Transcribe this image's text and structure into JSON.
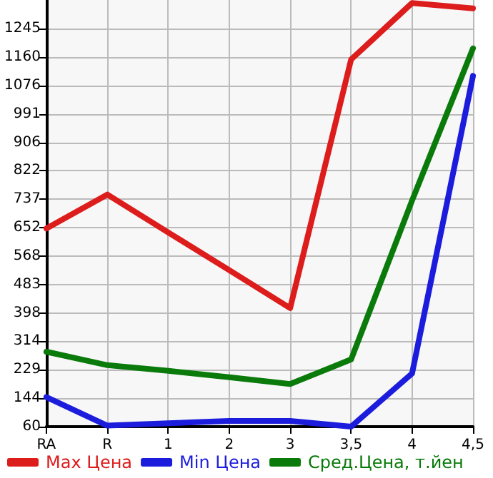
{
  "chart_data": {
    "type": "line",
    "categories": [
      "RA",
      "R",
      "1",
      "2",
      "3",
      "3,5",
      "4",
      "4,5"
    ],
    "series": [
      {
        "name": "Max Цена",
        "color": "#dd1c1c",
        "values": [
          650,
          751,
          638,
          526,
          413,
          1153,
          1321,
          1305
        ]
      },
      {
        "name": "Min Цена",
        "color": "#1c1cdd",
        "values": [
          148,
          63,
          70,
          77,
          77,
          60,
          218,
          1104
        ]
      },
      {
        "name": "Сред.Цена, т.йен",
        "color": "#0a7a0a",
        "values": [
          283,
          243,
          226,
          207,
          187,
          260,
          733,
          1186
        ]
      }
    ],
    "ylim": [
      60,
      1330
    ],
    "yticks": [
      60,
      144,
      229,
      314,
      398,
      483,
      568,
      652,
      737,
      822,
      906,
      991,
      1076,
      1160,
      1245
    ],
    "grid": true,
    "legend": "bottom",
    "marker": "none",
    "line_style": "solid"
  }
}
